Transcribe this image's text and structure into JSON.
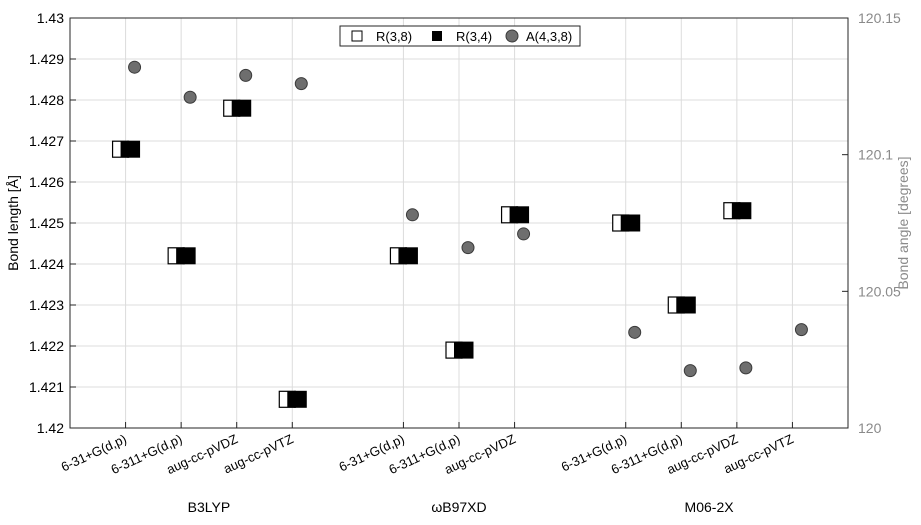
{
  "chart_data": {
    "type": "scatter",
    "title": "",
    "ylabel_left": "Bond length [Å]",
    "ylabel_right": "Bond angle [degrees]",
    "ylim_left": [
      1.42,
      1.43
    ],
    "ylim_right": [
      120,
      120.15
    ],
    "yticks_left": [
      "1.42",
      "1.421",
      "1.422",
      "1.423",
      "1.424",
      "1.425",
      "1.426",
      "1.427",
      "1.428",
      "1.429",
      "1.43"
    ],
    "yticks_right": [
      "120",
      "120.05",
      "120.1",
      "120.15"
    ],
    "grid": true,
    "legend_position": "top-center",
    "x_ticks": [
      "6-31+G(d,p)",
      "6-311+G(d,p)",
      "aug-cc-pVDZ",
      "aug-cc-pVTZ",
      "6-31+G(d,p)",
      "6-311+G(d,p)",
      "aug-cc-pVDZ",
      "6-31+G(d,p)",
      "6-311+G(d,p)",
      "aug-cc-pVDZ",
      "aug-cc-pVTZ"
    ],
    "groups": [
      {
        "label": "B3LYP",
        "start": 0,
        "count": 4
      },
      {
        "label": "ωB97XD",
        "start": 5,
        "count": 3
      },
      {
        "label": "M06-2X",
        "start": 9,
        "count": 4
      }
    ],
    "x_positions": [
      1,
      2,
      3,
      4,
      6,
      7,
      8,
      10,
      11,
      12,
      13
    ],
    "xlim": [
      0,
      14
    ],
    "series": [
      {
        "name": "R(3,8)",
        "axis": "left",
        "marker": "half-square",
        "values": [
          1.4268,
          1.4242,
          1.4278,
          1.4207,
          1.4242,
          1.4219,
          1.4252,
          1.425,
          1.423,
          1.4253,
          null
        ]
      },
      {
        "name": "R(3,4)",
        "axis": "left",
        "marker": "filled-square",
        "values": [
          1.4268,
          1.4242,
          1.4278,
          1.4207,
          1.4242,
          1.4219,
          1.4252,
          1.425,
          1.423,
          1.4253,
          null
        ]
      },
      {
        "name": "A(4,3,8)",
        "axis": "right",
        "marker": "circle",
        "values": [
          120.132,
          120.121,
          120.129,
          120.126,
          120.078,
          120.066,
          120.071,
          120.035,
          120.021,
          120.022,
          120.036
        ]
      }
    ]
  },
  "colors": {
    "frame": "#262626",
    "grid": "#dcdcdc",
    "right_axis": "#8a8a8a",
    "circle_fill": "#6e6e6e",
    "circle_edge": "#3a3a3a",
    "square": "#000000"
  }
}
